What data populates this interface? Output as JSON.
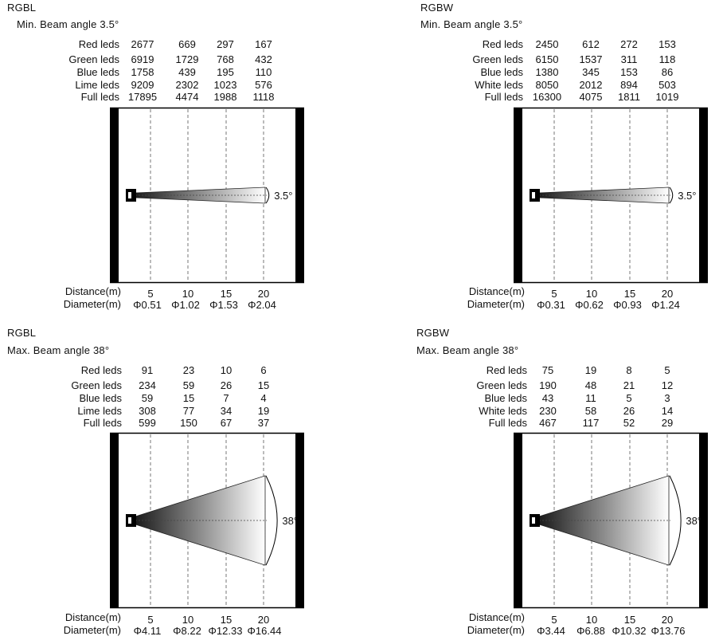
{
  "panels": [
    {
      "title": "RGBL",
      "subtitle": "Min. Beam angle 3.5°",
      "rows": [
        {
          "label": "Red leds",
          "values": [
            "2677",
            "669",
            "297",
            "167"
          ]
        },
        {
          "label": "Green leds",
          "values": [
            "6919",
            "1729",
            "768",
            "432"
          ]
        },
        {
          "label": "Blue leds",
          "values": [
            "1758",
            "439",
            "195",
            "110"
          ]
        },
        {
          "label": "Lime leds",
          "values": [
            "9209",
            "2302",
            "1023",
            "576"
          ]
        },
        {
          "label": "Full leds",
          "values": [
            "17895",
            "4474",
            "1988",
            "1118"
          ]
        }
      ],
      "angle_label": "3.5°",
      "beam_angle_deg": 3.5,
      "distance_label": "Distance(m)",
      "distances": [
        "5",
        "10",
        "15",
        "20"
      ],
      "diameter_label": "Diameter(m)",
      "diameters": [
        "Φ0.51",
        "Φ1.02",
        "Φ1.53",
        "Φ2.04"
      ]
    },
    {
      "title": "RGBW",
      "subtitle": "Min. Beam angle 3.5°",
      "rows": [
        {
          "label": "Red leds",
          "values": [
            "2450",
            "612",
            "272",
            "153"
          ]
        },
        {
          "label": "Green leds",
          "values": [
            "6150",
            "1537",
            "311",
            "118"
          ]
        },
        {
          "label": "Blue leds",
          "values": [
            "1380",
            "345",
            "153",
            "86"
          ]
        },
        {
          "label": "White leds",
          "values": [
            "8050",
            "2012",
            "894",
            "503"
          ]
        },
        {
          "label": "Full leds",
          "values": [
            "16300",
            "4075",
            "1811",
            "1019"
          ]
        }
      ],
      "angle_label": "3.5°",
      "beam_angle_deg": 3.5,
      "distance_label": "Distance(m)",
      "distances": [
        "5",
        "10",
        "15",
        "20"
      ],
      "diameter_label": "Diameter(m)",
      "diameters": [
        "Φ0.31",
        "Φ0.62",
        "Φ0.93",
        "Φ1.24"
      ]
    },
    {
      "title": "RGBL",
      "subtitle": "Max. Beam angle 38°",
      "rows": [
        {
          "label": "Red leds",
          "values": [
            "91",
            "23",
            "10",
            "6"
          ]
        },
        {
          "label": "Green leds",
          "values": [
            "234",
            "59",
            "26",
            "15"
          ]
        },
        {
          "label": "Blue leds",
          "values": [
            "59",
            "15",
            "7",
            "4"
          ]
        },
        {
          "label": "Lime leds",
          "values": [
            "308",
            "77",
            "34",
            "19"
          ]
        },
        {
          "label": "Full leds",
          "values": [
            "599",
            "150",
            "67",
            "37"
          ]
        }
      ],
      "angle_label": "38°",
      "beam_angle_deg": 38,
      "distance_label": "Distance(m)",
      "distances": [
        "5",
        "10",
        "15",
        "20"
      ],
      "diameter_label": "Diameter(m)",
      "diameters": [
        "Φ4.11",
        "Φ8.22",
        "Φ12.33",
        "Φ16.44"
      ]
    },
    {
      "title": "RGBW",
      "subtitle": "Max. Beam angle 38°",
      "rows": [
        {
          "label": "Red leds",
          "values": [
            "75",
            "19",
            "8",
            "5"
          ]
        },
        {
          "label": "Green leds",
          "values": [
            "190",
            "48",
            "21",
            "12"
          ]
        },
        {
          "label": "Blue leds",
          "values": [
            "43",
            "11",
            "5",
            "3"
          ]
        },
        {
          "label": "White leds",
          "values": [
            "230",
            "58",
            "26",
            "14"
          ]
        },
        {
          "label": "Full leds",
          "values": [
            "467",
            "117",
            "52",
            "29"
          ]
        }
      ],
      "angle_label": "38°",
      "beam_angle_deg": 38,
      "distance_label": "Distance(m)",
      "distances": [
        "5",
        "10",
        "15",
        "20"
      ],
      "diameter_label": "Diameter(m)",
      "diameters": [
        "Φ3.44",
        "Φ6.88",
        "Φ10.32",
        "Φ13.76"
      ]
    }
  ]
}
